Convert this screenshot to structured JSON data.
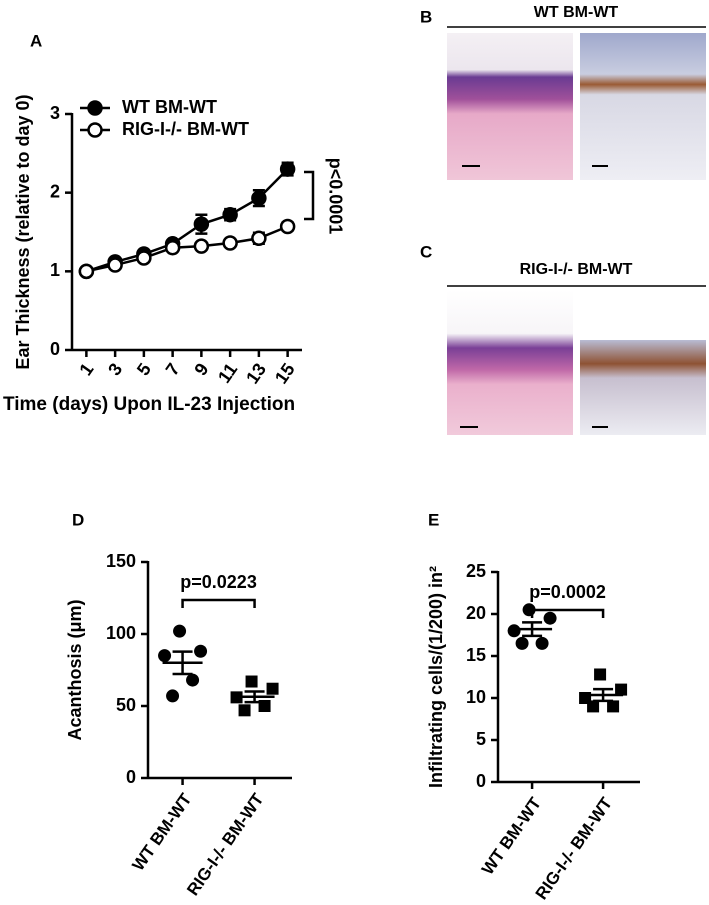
{
  "chart_data": [
    {
      "type": "line",
      "panel": "A",
      "xlabel": "Time (days) Upon IL-23 Injection",
      "ylabel": "Ear Thickness (relative to day 0)",
      "x": [
        1,
        3,
        5,
        7,
        9,
        11,
        13,
        15
      ],
      "xlim": [
        0,
        16
      ],
      "xticks": [
        1,
        3,
        5,
        7,
        9,
        11,
        13,
        15
      ],
      "ylim": [
        0,
        3
      ],
      "yticks": [
        0,
        1,
        2,
        3
      ],
      "annotation": "p<0.0001",
      "series": [
        {
          "name": "WT BM-WT",
          "color": "#000000",
          "marker": "filled",
          "values": [
            1.0,
            1.12,
            1.22,
            1.35,
            1.6,
            1.72,
            1.93,
            2.3
          ],
          "errors": [
            0.02,
            0.03,
            0.03,
            0.04,
            0.12,
            0.07,
            0.1,
            0.08
          ]
        },
        {
          "name": "RIG-I-/- BM-WT",
          "color": "#000000",
          "marker": "open",
          "values": [
            1.0,
            1.08,
            1.17,
            1.3,
            1.32,
            1.36,
            1.42,
            1.57
          ],
          "errors": [
            0.02,
            0.02,
            0.02,
            0.03,
            0.03,
            0.03,
            0.07,
            0.05
          ]
        }
      ]
    },
    {
      "type": "dot",
      "panel": "D",
      "ylabel": "Acanthosis (μm)",
      "categories": [
        "WT BM-WT",
        "RIG-I-/- BM-WT"
      ],
      "markers": [
        "circle",
        "square"
      ],
      "color": "#000000",
      "points": [
        [
          102,
          88,
          85,
          68,
          57
        ],
        [
          67,
          62,
          56,
          50,
          47
        ]
      ],
      "means": [
        80,
        56.4
      ],
      "sems": [
        7.8,
        3.7
      ],
      "ylim": [
        0,
        150
      ],
      "yticks": [
        0,
        50,
        100,
        150
      ],
      "annotation": "p=0.0223"
    },
    {
      "type": "dot",
      "panel": "E",
      "ylabel": "Infiltrating cells/(1/200) in²",
      "categories": [
        "WT BM-WT",
        "RIG-I-/- BM-WT"
      ],
      "markers": [
        "circle",
        "square"
      ],
      "color": "#000000",
      "points": [
        [
          20.5,
          19.5,
          18,
          16.5,
          16.5
        ],
        [
          12.8,
          11,
          10,
          9,
          9
        ]
      ],
      "means": [
        18.2,
        10.36
      ],
      "sems": [
        0.8,
        0.7
      ],
      "ylim": [
        0,
        25
      ],
      "yticks": [
        0,
        5,
        10,
        15,
        20,
        25
      ],
      "annotation": "p=0.0002"
    }
  ],
  "images": [
    {
      "panel": "B",
      "title": "WT BM-WT"
    },
    {
      "panel": "C",
      "title": "RIG-I-/- BM-WT"
    }
  ]
}
